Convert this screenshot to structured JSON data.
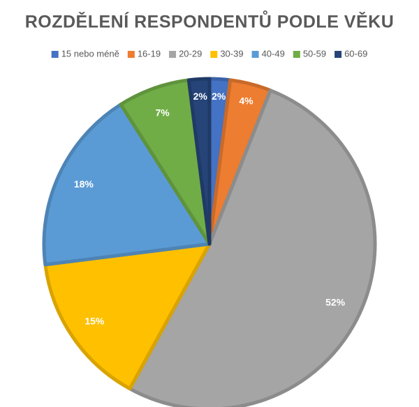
{
  "chart_data": {
    "type": "pie",
    "title": "ROZDĚLENÍ RESPONDENTŮ PODLE VĚKU",
    "categories": [
      "15 nebo méně",
      "16-19",
      "20-29",
      "30-39",
      "40-49",
      "50-59",
      "60-69"
    ],
    "values": [
      2,
      4,
      52,
      15,
      18,
      7,
      2
    ],
    "value_labels": [
      "2%",
      "4%",
      "52%",
      "15%",
      "18%",
      "7%",
      "2%"
    ],
    "colors": [
      "#4472c4",
      "#ed7d31",
      "#a5a5a5",
      "#ffc000",
      "#5b9bd5",
      "#70ad47",
      "#264478"
    ],
    "legend": "top"
  }
}
